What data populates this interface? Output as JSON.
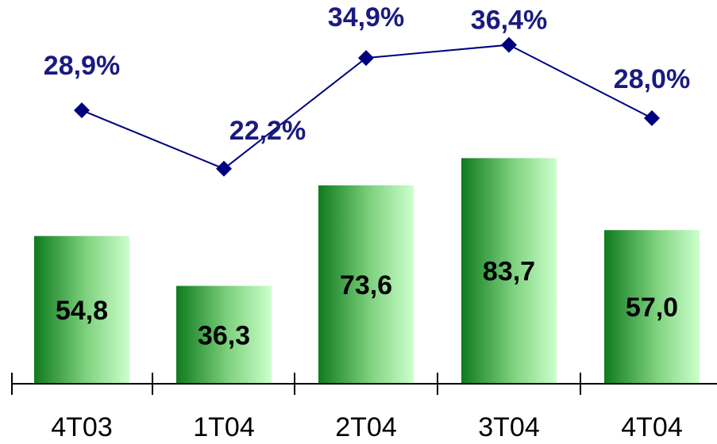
{
  "chart_data": {
    "type": "bar",
    "categories": [
      "4T03",
      "1T04",
      "2T04",
      "3T04",
      "4T04"
    ],
    "series": [
      {
        "type": "bar",
        "values": [
          54.8,
          36.3,
          73.6,
          83.7,
          57.0
        ]
      },
      {
        "type": "line",
        "values": [
          28.9,
          22.2,
          34.9,
          36.4,
          28.0
        ]
      }
    ],
    "bar_labels": [
      "54,8",
      "36,3",
      "73,6",
      "83,7",
      "57,0"
    ],
    "line_labels": [
      "28,9%",
      "22,2%",
      "34,9%",
      "36,4%",
      "28,0%"
    ],
    "title": "",
    "xlabel": "",
    "ylabel": "",
    "ylim": [
      0,
      90
    ],
    "y2lim": [
      0,
      42
    ],
    "grid": false,
    "colors": {
      "bar_dark": "#0f7a1e",
      "bar_mid": "#7fd27f",
      "bar_light": "#ccffcc",
      "line": "#000080",
      "line_label": "#1a1a80",
      "axis": "#000000"
    }
  }
}
